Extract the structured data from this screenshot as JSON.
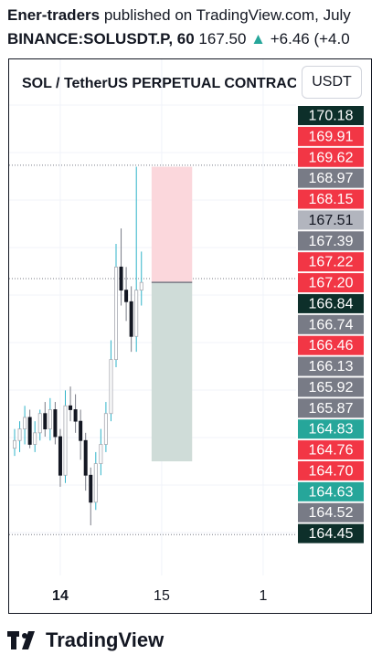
{
  "header": {
    "author": "Ener-traders",
    "published_text": "published on TradingView.com, July",
    "symbol": "BINANCE:SOLUSDT.P, 60",
    "price": "167.50",
    "change": "+6.46 (+4.0"
  },
  "chart_title": "SOL / TetherUS PERPETUAL CONTRACT",
  "currency_button": "USDT",
  "footer": {
    "brand": "TradingView"
  },
  "colors": {
    "up": "#26a69a",
    "down": "#f23645",
    "gray": "#787b86",
    "dark": "#0d2f2a",
    "stop": "#fbd7dc",
    "target": "#cfdcd8",
    "current": "#b2b5be"
  },
  "chart_data": {
    "type": "candlestick",
    "title": "SOL / TetherUS PERPETUAL CONTRACT",
    "y_range": [
      164.3,
      170.4
    ],
    "x_ticks": [
      {
        "label": "14",
        "bold": true,
        "index": 9
      },
      {
        "label": "15",
        "bold": false,
        "index": 29
      },
      {
        "label": "1",
        "bold": false,
        "index": 49
      }
    ],
    "candles": [
      {
        "o": 165.95,
        "h": 166.2,
        "l": 165.85,
        "c": 166.05
      },
      {
        "o": 166.05,
        "h": 166.3,
        "l": 165.9,
        "c": 166.2
      },
      {
        "o": 166.2,
        "h": 166.5,
        "l": 166.0,
        "c": 166.35
      },
      {
        "o": 166.35,
        "h": 166.45,
        "l": 165.95,
        "c": 166.0
      },
      {
        "o": 166.0,
        "h": 166.3,
        "l": 165.9,
        "c": 166.15
      },
      {
        "o": 166.15,
        "h": 166.45,
        "l": 166.05,
        "c": 166.4
      },
      {
        "o": 166.4,
        "h": 166.55,
        "l": 166.1,
        "c": 166.2
      },
      {
        "o": 166.2,
        "h": 166.6,
        "l": 166.05,
        "c": 166.45
      },
      {
        "o": 166.45,
        "h": 166.55,
        "l": 166.0,
        "c": 166.1
      },
      {
        "o": 166.1,
        "h": 166.2,
        "l": 165.45,
        "c": 165.6
      },
      {
        "o": 165.6,
        "h": 166.7,
        "l": 165.5,
        "c": 166.5
      },
      {
        "o": 166.5,
        "h": 166.75,
        "l": 166.3,
        "c": 166.45
      },
      {
        "o": 166.45,
        "h": 166.65,
        "l": 166.15,
        "c": 166.3
      },
      {
        "o": 166.3,
        "h": 166.45,
        "l": 165.8,
        "c": 166.05
      },
      {
        "o": 166.05,
        "h": 166.15,
        "l": 165.4,
        "c": 165.6
      },
      {
        "o": 165.6,
        "h": 165.7,
        "l": 164.95,
        "c": 165.25
      },
      {
        "o": 165.25,
        "h": 165.9,
        "l": 165.15,
        "c": 165.75
      },
      {
        "o": 165.75,
        "h": 166.2,
        "l": 165.6,
        "c": 166.0
      },
      {
        "o": 166.0,
        "h": 166.55,
        "l": 165.9,
        "c": 166.4
      },
      {
        "o": 166.4,
        "h": 167.35,
        "l": 166.3,
        "c": 167.1
      },
      {
        "o": 167.1,
        "h": 168.6,
        "l": 167.0,
        "c": 168.3
      },
      {
        "o": 168.3,
        "h": 168.8,
        "l": 167.8,
        "c": 168.0
      },
      {
        "o": 168.0,
        "h": 168.3,
        "l": 167.6,
        "c": 167.85
      },
      {
        "o": 167.85,
        "h": 168.05,
        "l": 167.2,
        "c": 167.4
      },
      {
        "o": 167.4,
        "h": 169.6,
        "l": 167.2,
        "c": 168.0
      },
      {
        "o": 168.0,
        "h": 168.5,
        "l": 167.8,
        "c": 168.1
      }
    ],
    "position": {
      "start_index": 27,
      "end_index": 35,
      "entry": 168.1,
      "stop": 169.6,
      "target": 165.78
    },
    "dotted_lines": [
      169.62,
      168.15,
      164.83
    ],
    "price_labels": [
      {
        "value": "170.18",
        "color": "#0d2f2a"
      },
      {
        "value": "169.91",
        "color": "#f23645"
      },
      {
        "value": "169.62",
        "color": "#f23645"
      },
      {
        "value": "168.97",
        "color": "#787b86"
      },
      {
        "value": "168.15",
        "color": "#f23645"
      },
      {
        "value": "167.51",
        "color": "#b2b5be"
      },
      {
        "value": "167.39",
        "color": "#787b86"
      },
      {
        "value": "167.22",
        "color": "#f23645"
      },
      {
        "value": "167.20",
        "color": "#f23645"
      },
      {
        "value": "166.84",
        "color": "#0d2f2a"
      },
      {
        "value": "166.74",
        "color": "#787b86"
      },
      {
        "value": "166.46",
        "color": "#f23645"
      },
      {
        "value": "166.13",
        "color": "#787b86"
      },
      {
        "value": "165.92",
        "color": "#787b86"
      },
      {
        "value": "165.87",
        "color": "#787b86"
      },
      {
        "value": "164.83",
        "color": "#26a69a"
      },
      {
        "value": "164.76",
        "color": "#f23645"
      },
      {
        "value": "164.70",
        "color": "#f23645"
      },
      {
        "value": "164.63",
        "color": "#26a69a"
      },
      {
        "value": "164.52",
        "color": "#787b86"
      },
      {
        "value": "164.45",
        "color": "#0d2f2a"
      }
    ]
  }
}
